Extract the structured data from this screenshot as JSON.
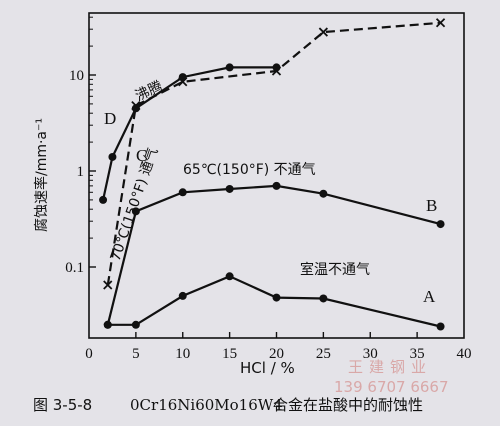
{
  "chart_data": {
    "type": "line",
    "xlabel": "HCl / %",
    "ylabel": "腐蚀速率/mm·a⁻¹",
    "xlim": [
      0,
      40
    ],
    "ylim": [
      0.02,
      40
    ],
    "yscale": "log",
    "x_ticks": [
      "0",
      "5",
      "10",
      "15",
      "20",
      "25",
      "30",
      "35",
      "40"
    ],
    "y_ticks": [
      {
        "value": 0.1,
        "label": "0.1"
      },
      {
        "value": 1,
        "label": "1"
      },
      {
        "value": 10,
        "label": "10"
      }
    ],
    "grid": false,
    "series": [
      {
        "name": "A",
        "annotation": "室温不通气",
        "style": "solid",
        "marker": "dot",
        "x": [
          2,
          5,
          10,
          15,
          20,
          25,
          37.5
        ],
        "y": [
          0.025,
          0.025,
          0.05,
          0.08,
          0.048,
          0.047,
          0.024
        ]
      },
      {
        "name": "B",
        "annotation": "65℃(150°F) 不通气",
        "style": "solid",
        "marker": "dot",
        "x": [
          2,
          5,
          10,
          15,
          20,
          25,
          37.5
        ],
        "y": [
          0.025,
          0.38,
          0.6,
          0.65,
          0.7,
          0.58,
          0.28
        ]
      },
      {
        "name": "C",
        "annotation": "70℃(150°F) 通气",
        "style": "dashed",
        "marker": "x",
        "x": [
          2,
          5,
          10,
          20,
          25,
          37.5
        ],
        "y": [
          0.065,
          4.8,
          8.5,
          11,
          28,
          35
        ]
      },
      {
        "name": "D",
        "annotation": "沸腾",
        "style": "solid",
        "marker": "dot",
        "x": [
          1.5,
          2.5,
          5,
          10,
          15,
          20
        ],
        "y": [
          0.5,
          1.4,
          4.5,
          9.5,
          12,
          12
        ]
      }
    ]
  },
  "caption": {
    "number": "图 3-5-8",
    "alloy": "0Cr16Ni60Mo16W4",
    "text": "合金在盐酸中的耐蚀性"
  },
  "watermark": {
    "name": "王建钢业",
    "phone": "139 6707 6667"
  }
}
